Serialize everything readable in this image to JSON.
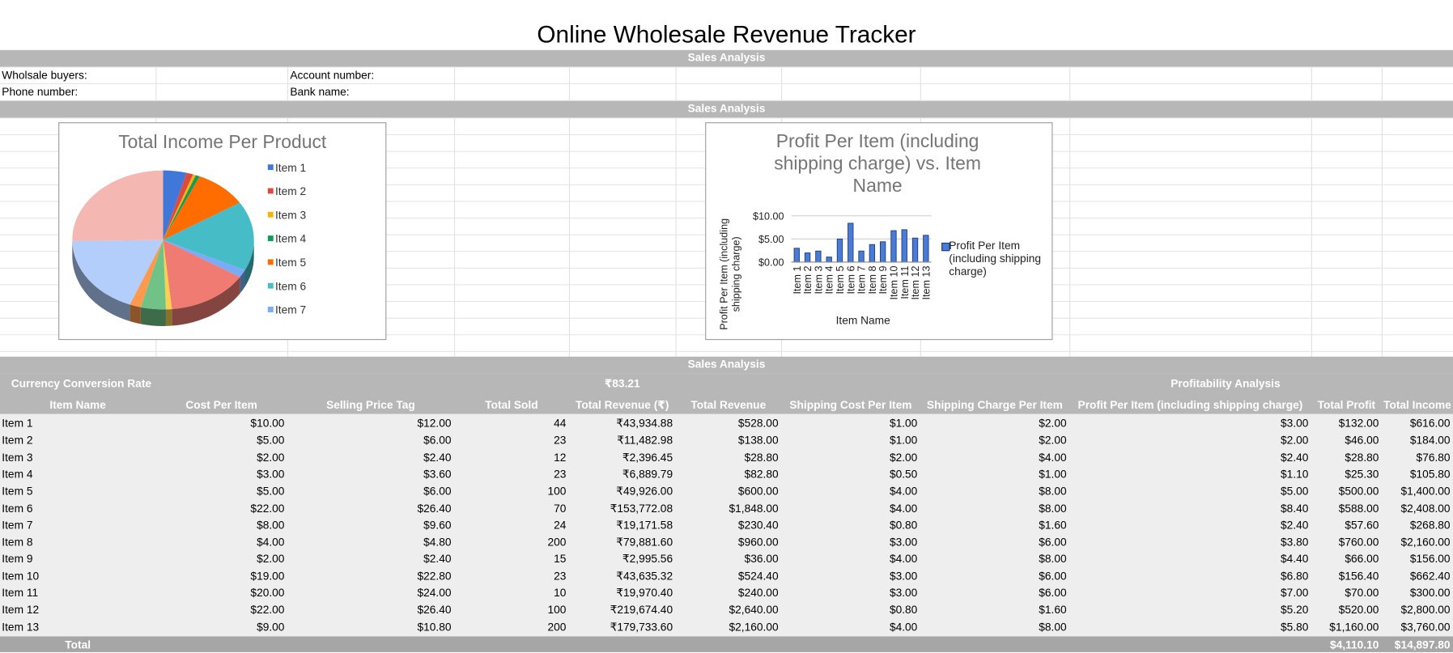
{
  "title": "Online Wholesale Revenue Tracker",
  "bands": [
    "Sales Analysis",
    "Sales Analysis",
    "Sales Analysis"
  ],
  "info": {
    "buyers": "Wholsale buyers:",
    "phone": "Phone number:",
    "account": "Account number:",
    "bank": "Bank name:"
  },
  "chart_data": [
    {
      "type": "pie",
      "title": "Total Income Per Product",
      "values": [
        616,
        184,
        76.8,
        105.8,
        1400,
        2408,
        268.8,
        2160,
        156,
        662.4,
        300,
        2800,
        3760
      ],
      "colors": [
        "#3f78d8",
        "#dd4b3e",
        "#f4b400",
        "#0f9d58",
        "#ff6d00",
        "#46bdc6",
        "#7baaf7",
        "#f07b72",
        "#fcd04f",
        "#71c287",
        "#ff994d",
        "#b3cefb",
        "#f4b7b2"
      ],
      "legend": [
        "Item 1",
        "Item 2",
        "Item 3",
        "Item 4",
        "Item 5",
        "Item 6",
        "Item 7"
      ]
    },
    {
      "type": "bar",
      "title": "Profit Per Item (including shipping charge) vs. Item Name",
      "x_label": "Item Name",
      "y_label": "Profit Per Item (including shipping charge)",
      "categories": [
        "Item 1",
        "Item 2",
        "Item 3",
        "Item 4",
        "Item 5",
        "Item 6",
        "Item 7",
        "Item 8",
        "Item 9",
        "Item 10",
        "Item 11",
        "Item 12",
        "Item 13"
      ],
      "series": [
        {
          "name": "Profit Per Item (including shipping charge)",
          "color": "#4a7bd6",
          "values": [
            3,
            2,
            2.4,
            1.1,
            5,
            8.4,
            2.4,
            3.8,
            4.4,
            6.8,
            7,
            5.2,
            5.8
          ]
        }
      ],
      "ylim": [
        0,
        10
      ],
      "yticks": [
        {
          "value": 0,
          "label": "$0.00"
        },
        {
          "value": 5,
          "label": "$5.00"
        },
        {
          "value": 10,
          "label": "$10.00"
        }
      ],
      "grid": true
    }
  ],
  "table": {
    "currency_label": "Currency Conversion Rate",
    "currency_rate": "₹83.21",
    "profitability": "Profitability Analysis",
    "header": [
      "Item Name",
      "Cost Per Item",
      "Selling Price Tag",
      "Total Sold",
      "Total Revenue (₹)",
      "Total Revenue",
      "Shipping Cost Per Item",
      "Shipping Charge Per Item",
      "Profit Per Item (including shipping charge)",
      "Total Profit",
      "Total Income"
    ],
    "rows": [
      [
        "Item 1",
        "$10.00",
        "$12.00",
        "44",
        "₹43,934.88",
        "$528.00",
        "$1.00",
        "$2.00",
        "$3.00",
        "$132.00",
        "$616.00"
      ],
      [
        "Item 2",
        "$5.00",
        "$6.00",
        "23",
        "₹11,482.98",
        "$138.00",
        "$1.00",
        "$2.00",
        "$2.00",
        "$46.00",
        "$184.00"
      ],
      [
        "Item 3",
        "$2.00",
        "$2.40",
        "12",
        "₹2,396.45",
        "$28.80",
        "$2.00",
        "$4.00",
        "$2.40",
        "$28.80",
        "$76.80"
      ],
      [
        "Item 4",
        "$3.00",
        "$3.60",
        "23",
        "₹6,889.79",
        "$82.80",
        "$0.50",
        "$1.00",
        "$1.10",
        "$25.30",
        "$105.80"
      ],
      [
        "Item 5",
        "$5.00",
        "$6.00",
        "100",
        "₹49,926.00",
        "$600.00",
        "$4.00",
        "$8.00",
        "$5.00",
        "$500.00",
        "$1,400.00"
      ],
      [
        "Item 6",
        "$22.00",
        "$26.40",
        "70",
        "₹153,772.08",
        "$1,848.00",
        "$4.00",
        "$8.00",
        "$8.40",
        "$588.00",
        "$2,408.00"
      ],
      [
        "Item 7",
        "$8.00",
        "$9.60",
        "24",
        "₹19,171.58",
        "$230.40",
        "$0.80",
        "$1.60",
        "$2.40",
        "$57.60",
        "$268.80"
      ],
      [
        "Item 8",
        "$4.00",
        "$4.80",
        "200",
        "₹79,881.60",
        "$960.00",
        "$3.00",
        "$6.00",
        "$3.80",
        "$760.00",
        "$2,160.00"
      ],
      [
        "Item 9",
        "$2.00",
        "$2.40",
        "15",
        "₹2,995.56",
        "$36.00",
        "$4.00",
        "$8.00",
        "$4.40",
        "$66.00",
        "$156.00"
      ],
      [
        "Item 10",
        "$19.00",
        "$22.80",
        "23",
        "₹43,635.32",
        "$524.40",
        "$3.00",
        "$6.00",
        "$6.80",
        "$156.40",
        "$662.40"
      ],
      [
        "Item 11",
        "$20.00",
        "$24.00",
        "10",
        "₹19,970.40",
        "$240.00",
        "$3.00",
        "$6.00",
        "$7.00",
        "$70.00",
        "$300.00"
      ],
      [
        "Item 12",
        "$22.00",
        "$26.40",
        "100",
        "₹219,674.40",
        "$2,640.00",
        "$0.80",
        "$1.60",
        "$5.20",
        "$520.00",
        "$2,800.00"
      ],
      [
        "Item 13",
        "$9.00",
        "$10.80",
        "200",
        "₹179,733.60",
        "$2,160.00",
        "$4.00",
        "$8.00",
        "$5.80",
        "$1,160.00",
        "$3,760.00"
      ]
    ],
    "total": {
      "label": "Total",
      "profit": "$4,110.10",
      "income": "$14,897.80"
    }
  }
}
